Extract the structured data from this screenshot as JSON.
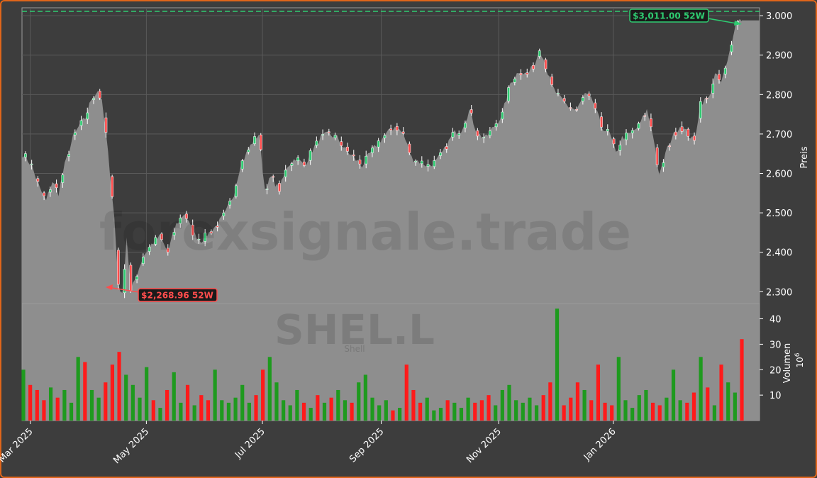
{
  "chart_data": {
    "type": "candlestick",
    "symbol_watermark": "SHEL.L",
    "symbol_sublabel": "Shell",
    "brand_watermark": "forexsignale.trade",
    "price_panel": {
      "ylabel": "Preis",
      "ylim": [
        2270,
        3020
      ],
      "yticks": [
        2300,
        2400,
        2500,
        2600,
        2700,
        2800,
        2900,
        3000
      ],
      "ytick_labels": [
        "2.300",
        "2.400",
        "2.500",
        "2.600",
        "2.700",
        "2.800",
        "2.900",
        "3.000"
      ],
      "high_52w": 3011.0,
      "high_52w_label": "$3,011.00 52W",
      "low_52w": 2268.96,
      "low_52w_label": "$2,268.96 52W",
      "grid": true,
      "area_fill": true
    },
    "volume_panel": {
      "ylabel": "Volumen",
      "unit": "10^6",
      "ylim": [
        0,
        46
      ],
      "yticks": [
        10,
        20,
        30,
        40
      ],
      "ytick_labels": [
        "10",
        "20",
        "30",
        "40"
      ]
    },
    "x_axis": {
      "tick_labels": [
        "Mar 2025",
        "May 2025",
        "Jul 2025",
        "Sep 2025",
        "Nov 2025",
        "Jan 2026"
      ]
    },
    "close_path": [
      [
        0,
        2650
      ],
      [
        4,
        2620
      ],
      [
        8,
        2560
      ],
      [
        11,
        2530
      ],
      [
        14,
        2580
      ],
      [
        17,
        2550
      ],
      [
        20,
        2620
      ],
      [
        24,
        2690
      ],
      [
        27,
        2720
      ],
      [
        30,
        2740
      ],
      [
        33,
        2790
      ],
      [
        36,
        2810
      ],
      [
        38,
        2780
      ],
      [
        40,
        2700
      ],
      [
        42,
        2600
      ],
      [
        44,
        2490
      ],
      [
        46,
        2320
      ],
      [
        48,
        2290
      ],
      [
        50,
        2440
      ],
      [
        52,
        2300
      ],
      [
        54,
        2330
      ],
      [
        58,
        2390
      ],
      [
        62,
        2420
      ],
      [
        66,
        2440
      ],
      [
        70,
        2400
      ],
      [
        74,
        2470
      ],
      [
        78,
        2500
      ],
      [
        82,
        2450
      ],
      [
        86,
        2430
      ],
      [
        90,
        2450
      ],
      [
        94,
        2470
      ],
      [
        98,
        2500
      ],
      [
        102,
        2550
      ],
      [
        105,
        2620
      ],
      [
        108,
        2650
      ],
      [
        111,
        2680
      ],
      [
        114,
        2700
      ],
      [
        117,
        2560
      ],
      [
        120,
        2590
      ],
      [
        124,
        2560
      ],
      [
        128,
        2620
      ],
      [
        132,
        2640
      ],
      [
        136,
        2620
      ],
      [
        140,
        2660
      ],
      [
        144,
        2690
      ],
      [
        148,
        2700
      ],
      [
        152,
        2690
      ],
      [
        156,
        2660
      ],
      [
        160,
        2640
      ],
      [
        164,
        2620
      ],
      [
        168,
        2650
      ],
      [
        172,
        2680
      ],
      [
        176,
        2700
      ],
      [
        180,
        2720
      ],
      [
        184,
        2700
      ],
      [
        188,
        2640
      ],
      [
        192,
        2630
      ],
      [
        196,
        2620
      ],
      [
        200,
        2630
      ],
      [
        204,
        2660
      ],
      [
        208,
        2700
      ],
      [
        212,
        2710
      ],
      [
        216,
        2760
      ],
      [
        220,
        2700
      ],
      [
        224,
        2690
      ],
      [
        228,
        2720
      ],
      [
        232,
        2750
      ],
      [
        236,
        2830
      ],
      [
        240,
        2860
      ],
      [
        244,
        2850
      ],
      [
        248,
        2880
      ],
      [
        250,
        2920
      ],
      [
        252,
        2890
      ],
      [
        256,
        2820
      ],
      [
        260,
        2790
      ],
      [
        264,
        2770
      ],
      [
        268,
        2760
      ],
      [
        272,
        2800
      ],
      [
        276,
        2780
      ],
      [
        280,
        2720
      ],
      [
        284,
        2700
      ],
      [
        287,
        2650
      ],
      [
        290,
        2690
      ],
      [
        294,
        2700
      ],
      [
        298,
        2720
      ],
      [
        302,
        2760
      ],
      [
        305,
        2700
      ],
      [
        308,
        2590
      ],
      [
        311,
        2650
      ],
      [
        314,
        2690
      ],
      [
        318,
        2720
      ],
      [
        322,
        2700
      ],
      [
        325,
        2680
      ],
      [
        328,
        2780
      ],
      [
        332,
        2790
      ],
      [
        335,
        2850
      ],
      [
        338,
        2830
      ],
      [
        341,
        2880
      ],
      [
        344,
        2960
      ],
      [
        346,
        2990
      ],
      [
        348,
        2990
      ]
    ],
    "volume_levels": [
      20,
      14,
      12,
      8,
      13,
      9,
      12,
      7,
      25,
      23,
      12,
      9,
      15,
      22,
      27,
      18,
      14,
      9,
      21,
      8,
      5,
      12,
      19,
      7,
      14,
      6,
      10,
      8,
      20,
      8,
      7,
      9,
      14,
      7,
      10,
      20,
      25,
      15,
      8,
      6,
      12,
      7,
      5,
      10,
      7,
      9,
      12,
      8,
      7,
      15,
      18,
      9,
      6,
      8,
      4,
      5,
      22,
      12,
      7,
      9,
      4,
      5,
      8,
      7,
      5,
      9,
      7,
      8,
      10,
      6,
      12,
      14,
      8,
      7,
      9,
      6,
      10,
      15,
      44,
      6,
      9,
      15,
      12,
      8,
      22,
      7,
      6,
      25,
      8,
      5,
      10,
      12,
      7,
      6,
      9,
      20,
      8,
      7,
      11,
      25,
      13,
      6,
      22,
      15,
      11,
      32
    ],
    "colors": {
      "up": "#1e9a1e",
      "down": "#ff1a1a",
      "area": "#8e8e8e",
      "background": "#3d3d3d",
      "high_line": "#2ecc71",
      "low_line": "#ff4d4d",
      "border": "#e0651a"
    }
  }
}
